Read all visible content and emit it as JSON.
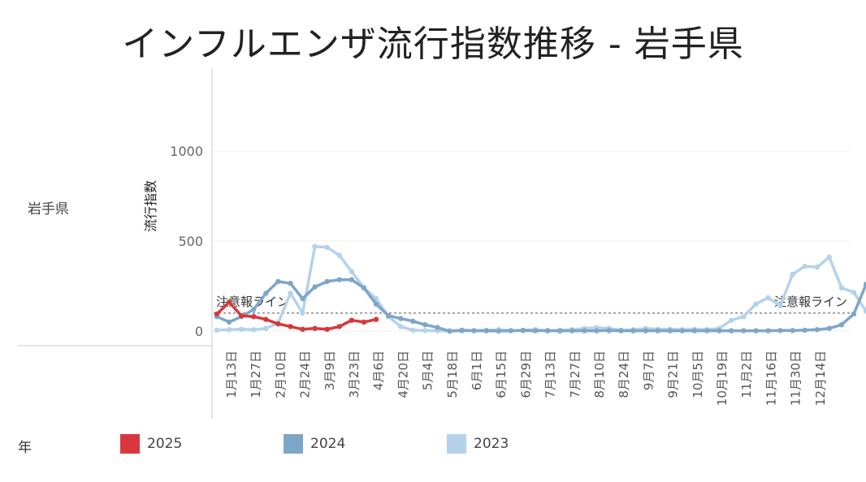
{
  "title": "インフルエンザ流行指数推移 - 岩手県",
  "row_label": "岩手県",
  "legend": {
    "title": "年",
    "items": [
      {
        "label": "2025",
        "color": "#d8383d"
      },
      {
        "label": "2024",
        "color": "#7ea6c9"
      },
      {
        "label": "2023",
        "color": "#b4d2eb"
      }
    ]
  },
  "chart_data": {
    "type": "line",
    "ylabel": "流行指数",
    "xlabel": "",
    "ylim": [
      -80,
      1450
    ],
    "yticks": [
      0,
      500,
      1000
    ],
    "xticks": [
      "1月13日",
      "1月27日",
      "2月10日",
      "2月24日",
      "3月9日",
      "3月23日",
      "4月6日",
      "4月20日",
      "5月4日",
      "5月18日",
      "6月1日",
      "6月15日",
      "6月29日",
      "7月13日",
      "7月27日",
      "8月10日",
      "8月24日",
      "9月7日",
      "9月21日",
      "10月5日",
      "10月19日",
      "11月2日",
      "11月16日",
      "11月30日",
      "12月14日"
    ],
    "reference_line": {
      "label": "注意報ライン",
      "value": 100
    },
    "series": [
      {
        "name": "2023",
        "color": "#b4d2eb",
        "values": [
          5,
          8,
          10,
          8,
          15,
          45,
          210,
          100,
          470,
          465,
          420,
          330,
          240,
          180,
          80,
          25,
          5,
          3,
          2,
          0,
          0,
          3,
          5,
          8,
          3,
          5,
          8,
          0,
          5,
          8,
          15,
          20,
          15,
          5,
          8,
          15,
          10,
          10,
          8,
          10,
          8,
          15,
          60,
          80,
          150,
          185,
          140,
          315,
          360,
          355,
          410,
          240,
          215,
          110
        ]
      },
      {
        "name": "2024",
        "color": "#7ea6c9",
        "values": [
          80,
          50,
          80,
          120,
          210,
          275,
          265,
          180,
          245,
          275,
          285,
          285,
          240,
          150,
          85,
          70,
          55,
          35,
          20,
          0,
          5,
          2,
          2,
          0,
          2,
          3,
          2,
          3,
          1,
          2,
          2,
          2,
          3,
          2,
          2,
          2,
          2,
          2,
          2,
          2,
          2,
          2,
          2,
          2,
          2,
          2,
          3,
          3,
          5,
          8,
          15,
          35,
          95,
          260,
          420,
          495
        ]
      },
      {
        "name": "2025",
        "color": "#d8383d",
        "values": [
          95,
          160,
          85,
          80,
          65,
          40,
          25,
          10,
          15,
          10,
          25,
          60,
          50,
          65
        ]
      }
    ]
  }
}
